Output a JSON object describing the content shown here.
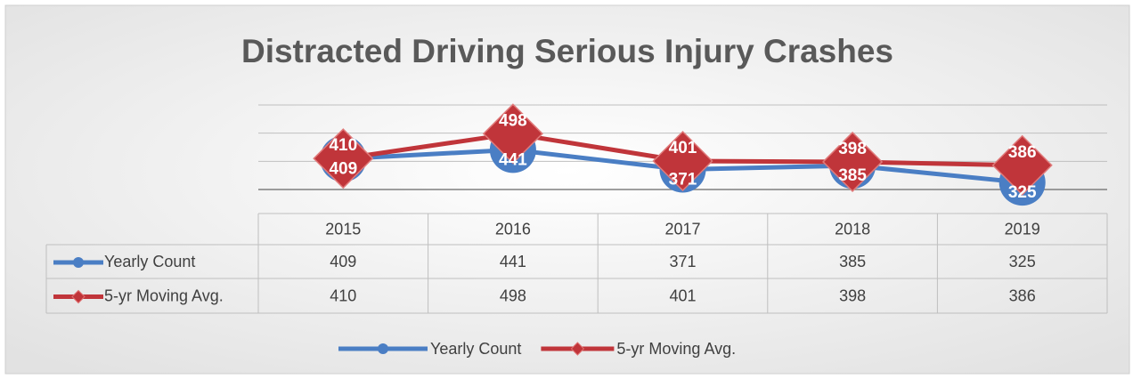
{
  "chart_data": {
    "type": "line",
    "title": "Distracted Driving Serious Injury Crashes",
    "categories": [
      "2015",
      "2016",
      "2017",
      "2018",
      "2019"
    ],
    "series": [
      {
        "name": "Yearly Count",
        "color": "#4a7ec4",
        "marker": "circle",
        "values": [
          409,
          441,
          371,
          385,
          325
        ]
      },
      {
        "name": "5-yr Moving Avg.",
        "color": "#c0353a",
        "marker": "diamond",
        "values": [
          410,
          498,
          401,
          398,
          386
        ]
      }
    ],
    "ylim": [
      300,
      600
    ],
    "yticks": [
      300,
      400,
      500,
      600
    ],
    "grid": true,
    "legend": "bottom",
    "data_table": true
  }
}
